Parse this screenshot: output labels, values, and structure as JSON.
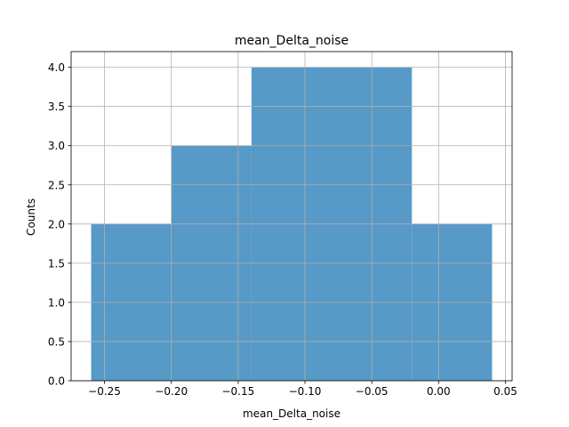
{
  "chart_data": {
    "type": "bar",
    "title": "mean_Delta_noise",
    "xlabel": "mean_Delta_noise",
    "ylabel": "Counts",
    "bins": [
      {
        "x0": -0.26,
        "x1": -0.2,
        "count": 2
      },
      {
        "x0": -0.2,
        "x1": -0.14,
        "count": 3
      },
      {
        "x0": -0.14,
        "x1": -0.02,
        "count": 4
      },
      {
        "x0": -0.02,
        "x1": 0.04,
        "count": 2
      }
    ],
    "xlim": [
      -0.275,
      0.055
    ],
    "ylim": [
      0,
      4.2
    ],
    "xticks": [
      -0.25,
      -0.2,
      -0.15,
      -0.1,
      -0.05,
      0.0,
      0.05
    ],
    "xtick_labels": [
      "−0.25",
      "−0.20",
      "−0.15",
      "−0.10",
      "−0.05",
      "0.00",
      "0.05"
    ],
    "yticks": [
      0,
      0.5,
      1.0,
      1.5,
      2.0,
      2.5,
      3.0,
      3.5,
      4.0
    ],
    "ytick_labels": [
      "0.0",
      "0.5",
      "1.0",
      "1.5",
      "2.0",
      "2.5",
      "3.0",
      "3.5",
      "4.0"
    ],
    "grid": true,
    "colors": {
      "bar": "#5799c7",
      "grid": "#b0b0b0",
      "axes": "#000000"
    }
  }
}
